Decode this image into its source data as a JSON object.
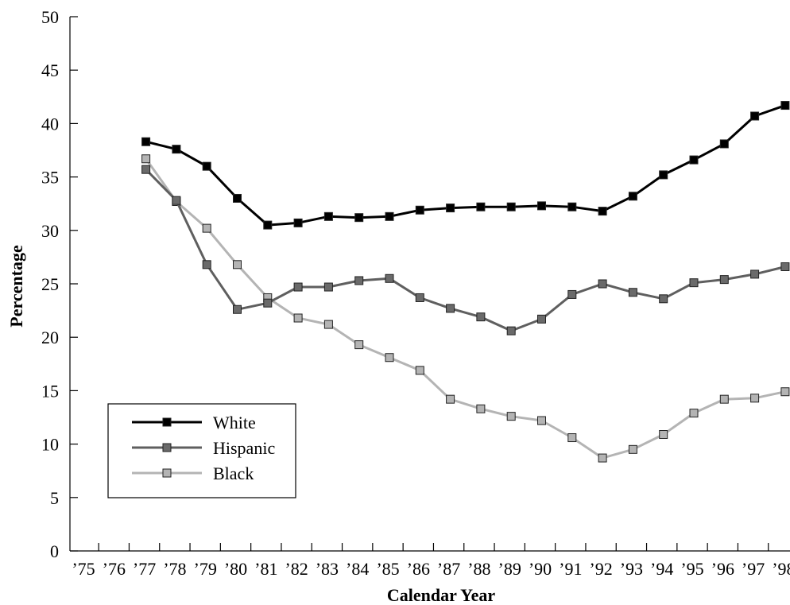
{
  "chart_data": {
    "type": "line",
    "title": "",
    "xlabel": "Calendar Year",
    "ylabel": "Percentage",
    "ylim": [
      0,
      50
    ],
    "yticks": [
      0,
      5,
      10,
      15,
      20,
      25,
      30,
      35,
      40,
      45,
      50
    ],
    "ytick_labels": [
      "0",
      "5",
      "10",
      "15",
      "20",
      "25",
      "30",
      "35",
      "40",
      "45",
      "50"
    ],
    "xtick_labels": [
      "’75",
      "’76",
      "’77",
      "’78",
      "’79",
      "’80",
      "’81",
      "’82",
      "’83",
      "’84",
      "’85",
      "’86",
      "’87",
      "’88",
      "’89",
      "’90",
      "’91",
      "’92",
      "’93",
      "’94",
      "’95",
      "’96",
      "’97",
      "’98"
    ],
    "x": [
      "’77",
      "’78",
      "’79",
      "’80",
      "’81",
      "’82",
      "’83",
      "’84",
      "’85",
      "’86",
      "’87",
      "’88",
      "’89",
      "’90",
      "’91",
      "’92",
      "’93",
      "’94",
      "’95",
      "’96",
      "’97",
      "’98"
    ],
    "legend_position": "bottom-left",
    "grid": false,
    "series": [
      {
        "name": "White",
        "color": "#000000",
        "marker_fill": "#000000",
        "values": [
          38.3,
          37.6,
          36.0,
          33.0,
          30.5,
          30.7,
          31.3,
          31.2,
          31.3,
          31.9,
          32.1,
          32.2,
          32.2,
          32.3,
          32.2,
          31.8,
          33.2,
          35.2,
          36.6,
          38.1,
          40.7,
          41.7
        ]
      },
      {
        "name": "Hispanic",
        "color": "#5f5f5f",
        "marker_fill": "#6a6a6a",
        "values": [
          35.7,
          32.8,
          26.8,
          22.6,
          23.2,
          24.7,
          24.7,
          25.3,
          25.5,
          23.7,
          22.7,
          21.9,
          20.6,
          21.7,
          24.0,
          25.0,
          24.2,
          23.6,
          25.1,
          25.4,
          25.9,
          26.6
        ]
      },
      {
        "name": "Black",
        "color": "#b4b4b4",
        "marker_fill": "#b4b4b4",
        "values": [
          36.7,
          32.7,
          30.2,
          26.8,
          23.7,
          21.8,
          21.2,
          19.3,
          18.1,
          16.9,
          14.2,
          13.3,
          12.6,
          12.2,
          10.6,
          8.7,
          9.5,
          10.9,
          12.9,
          14.2,
          14.3,
          14.9
        ]
      }
    ]
  }
}
